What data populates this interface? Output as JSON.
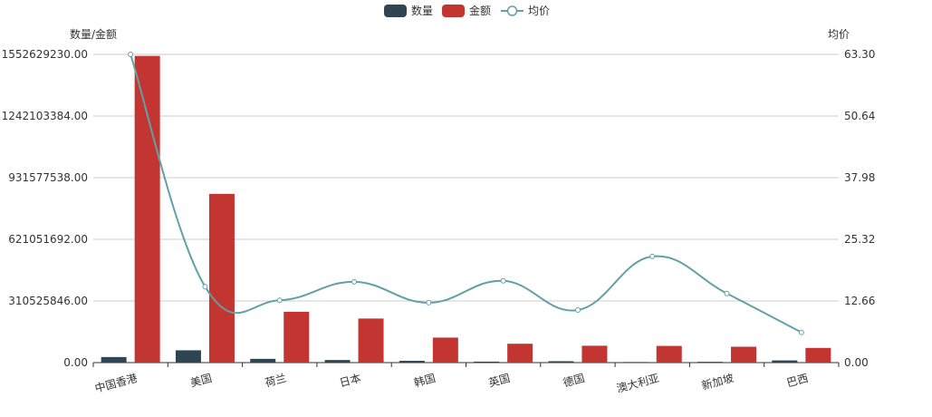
{
  "chart_data": {
    "type": "bar",
    "categories": [
      "中国香港",
      "美国",
      "荷兰",
      "日本",
      "韩国",
      "英国",
      "德国",
      "澳大利亚",
      "新加坡",
      "巴西"
    ],
    "series": [
      {
        "name": "数量",
        "type": "bar",
        "axis": "left",
        "color": "#2f4554",
        "values": [
          28000000,
          62000000,
          19000000,
          13000000,
          9000000,
          5000000,
          7000000,
          3000000,
          4000000,
          11000000
        ]
      },
      {
        "name": "金额",
        "type": "bar",
        "axis": "left",
        "color": "#c23531",
        "values": [
          1545000000,
          850000000,
          256000000,
          222000000,
          126000000,
          95000000,
          85000000,
          84000000,
          80000000,
          74000000
        ]
      },
      {
        "name": "均价",
        "type": "line",
        "axis": "right",
        "color": "#61a0a8",
        "values": [
          63.3,
          15.6,
          12.8,
          16.6,
          12.3,
          16.8,
          10.8,
          21.8,
          14.2,
          6.2
        ]
      }
    ],
    "left_axis": {
      "name": "数量/金额",
      "min": 0,
      "max": 1552629230,
      "ticks": [
        "0.00",
        "310525846.00",
        "621051692.00",
        "931577538.00",
        "1242103384.00",
        "1552629230.00"
      ]
    },
    "right_axis": {
      "name": "均价",
      "min": 0,
      "max": 63.3,
      "ticks": [
        "0.00",
        "12.66",
        "25.32",
        "37.98",
        "50.64",
        "63.30"
      ]
    },
    "legend": [
      "数量",
      "金额",
      "均价"
    ],
    "legend_position": "top-center"
  }
}
